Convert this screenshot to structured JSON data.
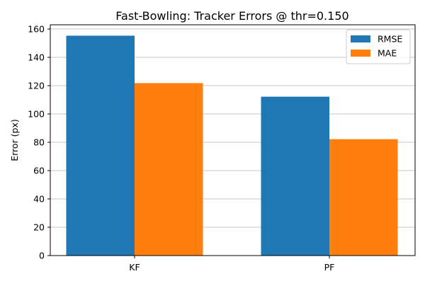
{
  "chart_data": {
    "type": "bar",
    "title": "Fast-Bowling: Tracker Errors @ thr=0.150",
    "xlabel": "",
    "ylabel": "Error (px)",
    "categories": [
      "KF",
      "PF"
    ],
    "series": [
      {
        "name": "RMSE",
        "values": [
          155.3,
          112.2
        ],
        "color": "#1f77b4"
      },
      {
        "name": "MAE",
        "values": [
          121.8,
          82.2
        ],
        "color": "#ff7f0e"
      }
    ],
    "ylim": [
      0,
      163
    ],
    "yticks": [
      0,
      20,
      40,
      60,
      80,
      100,
      120,
      140,
      160
    ],
    "grid": "y-major",
    "legend_position": "top-right"
  }
}
